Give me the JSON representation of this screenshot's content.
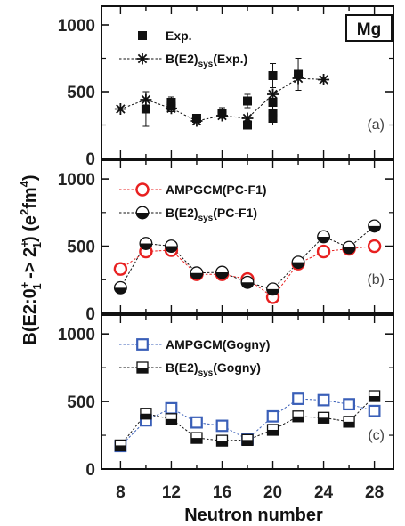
{
  "chart_data": {
    "type": "scatter",
    "xlabel": "Neutron number",
    "ylabel_main": "B(E2:0",
    "ylabel_sup1": "+",
    "ylabel_sub1": "1",
    "ylabel_mid": " -> 2",
    "ylabel_sup2": "+",
    "ylabel_sub2": "1",
    "ylabel_tail": ") (e",
    "ylabel_sup3": "2",
    "ylabel_fm": "fm",
    "ylabel_sup4": "4",
    "ylabel_close": ")",
    "badge": "Mg",
    "x_ticks": [
      "8",
      "12",
      "16",
      "20",
      "24",
      "28"
    ],
    "x_tick_values": [
      8,
      12,
      16,
      20,
      24,
      28
    ],
    "xlim": [
      6.5,
      29.5
    ],
    "panels": [
      {
        "label": "(a)",
        "ylim": [
          0,
          1100
        ],
        "y_ticks": [
          "0",
          "500",
          "1000"
        ],
        "y_tick_values": [
          0,
          500,
          1000
        ],
        "series": [
          {
            "name_main": "Exp.",
            "name_sub": "",
            "name_tail": "",
            "marker": "filled-square",
            "color": "#111111",
            "x": [
              10,
              12,
              12,
              14,
              16,
              18,
              18,
              20,
              20,
              20,
              20,
              22
            ],
            "y": [
              370,
              420,
              390,
              300,
              340,
              430,
              250,
              620,
              420,
              340,
              300,
              630
            ],
            "err": [
              130,
              40,
              40,
              20,
              40,
              50,
              30,
              90,
              60,
              60,
              50,
              120
            ]
          },
          {
            "name_main": "B(E2)",
            "name_sub": "sys",
            "name_tail": "(Exp.)",
            "marker": "asterisk",
            "color": "#111111",
            "connect": true,
            "x": [
              8,
              10,
              12,
              14,
              16,
              18,
              20,
              22,
              24
            ],
            "y": [
              370,
              440,
              375,
              280,
              320,
              300,
              480,
              600,
              590
            ]
          }
        ]
      },
      {
        "label": "(b)",
        "ylim": [
          0,
          1100
        ],
        "y_ticks": [
          "0",
          "500",
          "1000"
        ],
        "y_tick_values": [
          0,
          500,
          1000
        ],
        "series": [
          {
            "name_main": "AMPGCM(PC-F1)",
            "name_sub": "",
            "name_tail": "",
            "marker": "open-circle",
            "color": "#e82020",
            "connect": true,
            "x": [
              8,
              10,
              12,
              14,
              16,
              18,
              20,
              22,
              24,
              26,
              28
            ],
            "y": [
              330,
              460,
              470,
              290,
              290,
              255,
              120,
              370,
              460,
              480,
              500
            ]
          },
          {
            "name_main": "B(E2)",
            "name_sub": "sys",
            "name_tail": "(PC-F1)",
            "marker": "half-circle",
            "color": "#111111",
            "connect": true,
            "x": [
              8,
              10,
              12,
              14,
              16,
              18,
              20,
              22,
              24,
              26,
              28
            ],
            "y": [
              190,
              520,
              500,
              300,
              305,
              230,
              180,
              380,
              570,
              490,
              650
            ]
          }
        ]
      },
      {
        "label": "(c)",
        "ylim": [
          0,
          1100
        ],
        "y_ticks": [
          "0",
          "500",
          "1000"
        ],
        "y_tick_values": [
          0,
          500,
          1000
        ],
        "series": [
          {
            "name_main": "AMPGCM(Gogny)",
            "name_sub": "",
            "name_tail": "",
            "marker": "open-square",
            "color": "#3a5fb8",
            "connect": true,
            "x": [
              8,
              10,
              12,
              14,
              16,
              18,
              20,
              22,
              24,
              26,
              28
            ],
            "y": [
              170,
              360,
              450,
              345,
              320,
              220,
              390,
              520,
              510,
              480,
              430
            ]
          },
          {
            "name_main": "B(E2)",
            "name_sub": "sys",
            "name_tail": "(Gogny)",
            "marker": "half-square",
            "color": "#111111",
            "connect": true,
            "x": [
              8,
              10,
              12,
              14,
              16,
              18,
              20,
              22,
              24,
              26,
              28
            ],
            "y": [
              175,
              410,
              370,
              230,
              210,
              215,
              290,
              390,
              380,
              350,
              540
            ]
          }
        ]
      }
    ]
  }
}
